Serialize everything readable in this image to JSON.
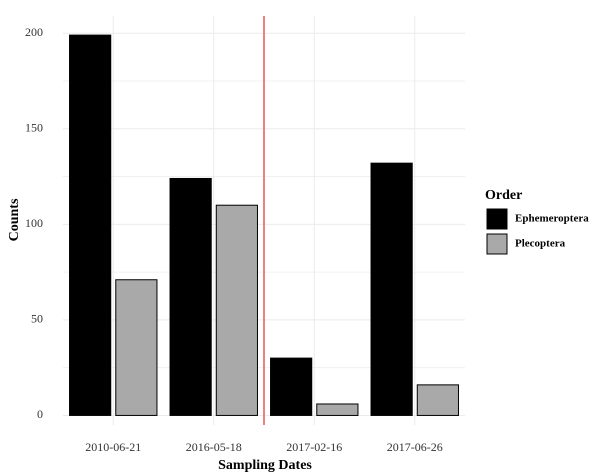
{
  "chart_data": {
    "type": "bar",
    "x_label": "Sampling Dates",
    "y_label": "Counts",
    "categories": [
      "2010-06-21",
      "2016-05-18",
      "2017-02-16",
      "2017-06-26"
    ],
    "legend_title": "Order",
    "series": [
      {
        "name": "Ephemeroptera",
        "color": "#000000",
        "values": [
          199,
          124,
          30,
          132
        ]
      },
      {
        "name": "Plecoptera",
        "color": "#a9a9a9",
        "values": [
          71,
          110,
          6,
          16
        ]
      }
    ],
    "ylim": [
      -5,
      209
    ],
    "yticks": [
      0,
      50,
      100,
      150,
      200
    ],
    "grid": true,
    "vline": {
      "position": 2.5,
      "color": "#f08080"
    }
  }
}
